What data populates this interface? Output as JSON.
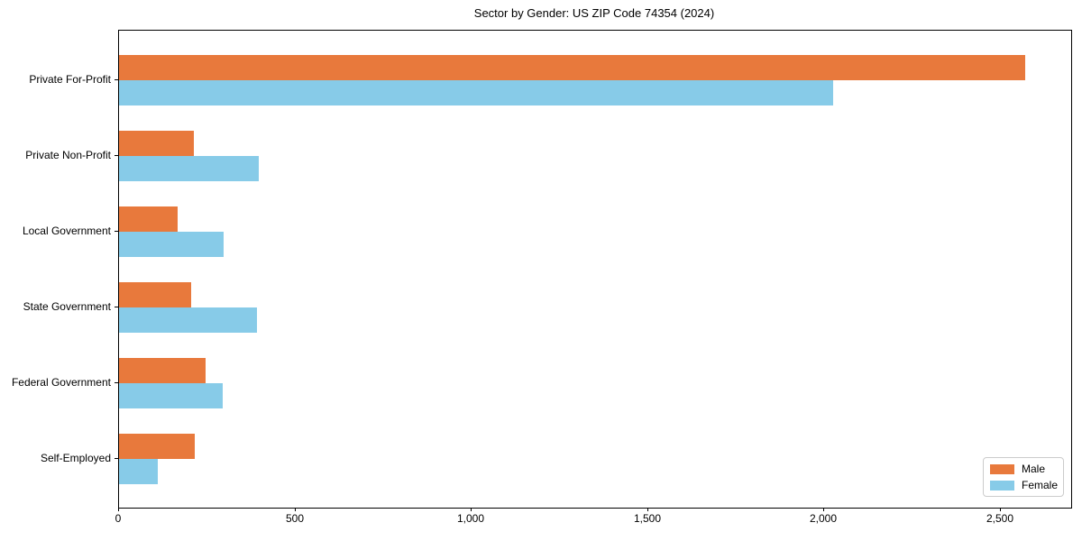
{
  "page": {
    "background_color": "#ffffff"
  },
  "chart_data": {
    "type": "bar",
    "orientation": "horizontal",
    "title": "Sector by Gender: US ZIP Code 74354 (2024)",
    "categories": [
      "Private For-Profit",
      "Private Non-Profit",
      "Local Government",
      "State Government",
      "Federal Government",
      "Self-Employed"
    ],
    "series": [
      {
        "name": "Male",
        "color": "#E8793C",
        "values": [
          2570,
          212,
          165,
          205,
          246,
          215
        ]
      },
      {
        "name": "Female",
        "color": "#87CBE8",
        "values": [
          2025,
          396,
          297,
          391,
          295,
          110
        ]
      }
    ],
    "xlabel": "",
    "ylabel": "",
    "xlim": [
      0,
      2700
    ],
    "xticks": [
      0,
      500,
      1000,
      1500,
      2000,
      2500
    ],
    "xtick_labels": [
      "0",
      "500",
      "1,000",
      "1,500",
      "2,000",
      "2,500"
    ],
    "grid": false,
    "legend": {
      "position": "lower-right",
      "items": [
        {
          "label": "Male",
          "color": "#E8793C"
        },
        {
          "label": "Female",
          "color": "#87CBE8"
        }
      ]
    }
  }
}
